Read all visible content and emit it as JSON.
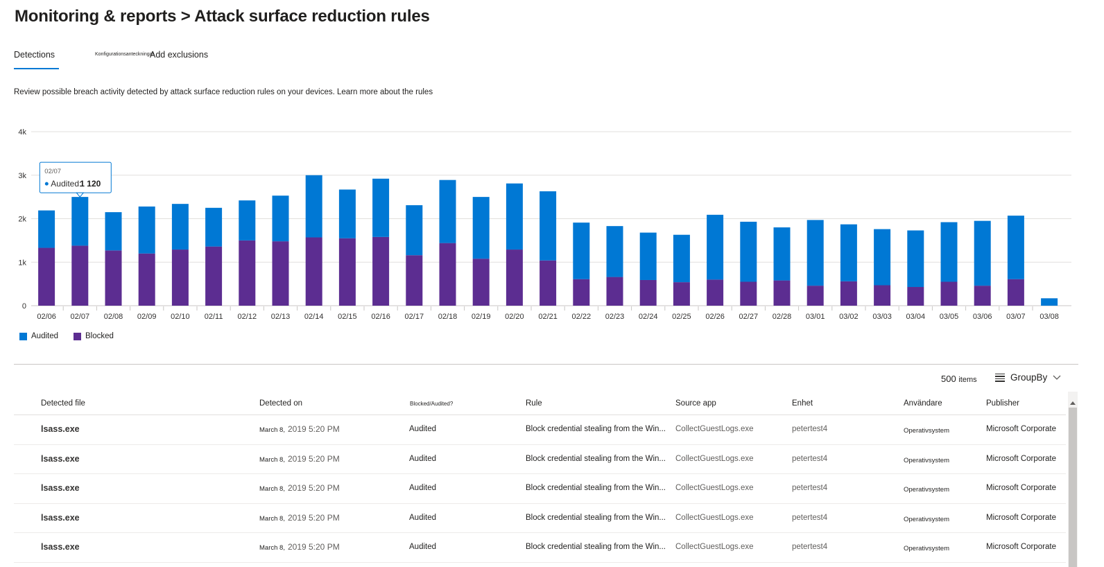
{
  "page": {
    "title": "Monitoring & reports > Attack surface reduction rules",
    "description": "Review possible breach activity detected by attack surface reduction rules on your devices. Learn more about the rules"
  },
  "tabs": [
    {
      "label": "Detections",
      "active": true
    },
    {
      "label": "Konfigurationsanteckningar",
      "active": false
    },
    {
      "label": "Add exclusions",
      "active": false
    }
  ],
  "colors": {
    "audited": "#0078d4",
    "blocked": "#5c2d91",
    "accent": "#0078d4"
  },
  "chart_data": {
    "type": "bar",
    "stacked": true,
    "categories": [
      "02/06",
      "02/07",
      "02/08",
      "02/09",
      "02/10",
      "02/11",
      "02/12",
      "02/13",
      "02/14",
      "02/15",
      "02/16",
      "02/17",
      "02/18",
      "02/19",
      "02/20",
      "02/21",
      "02/22",
      "02/23",
      "02/24",
      "02/25",
      "02/26",
      "02/27",
      "02/28",
      "03/01",
      "03/02",
      "03/03",
      "03/04",
      "03/05",
      "03/06",
      "03/07",
      "03/08"
    ],
    "series": [
      {
        "name": "Blocked",
        "color": "#5c2d91",
        "values": [
          1330,
          1380,
          1270,
          1200,
          1290,
          1360,
          1500,
          1480,
          1570,
          1550,
          1580,
          1160,
          1440,
          1080,
          1290,
          1040,
          610,
          660,
          590,
          540,
          600,
          550,
          580,
          460,
          560,
          470,
          430,
          550,
          460,
          610,
          0
        ]
      },
      {
        "name": "Audited",
        "color": "#0078d4",
        "values": [
          860,
          1120,
          880,
          1080,
          1050,
          890,
          920,
          1050,
          1430,
          1120,
          1340,
          1150,
          1450,
          1420,
          1520,
          1590,
          1300,
          1170,
          1090,
          1090,
          1490,
          1380,
          1220,
          1510,
          1310,
          1290,
          1300,
          1370,
          1490,
          1460,
          170
        ]
      }
    ],
    "y_ticks": [
      "0",
      "1k",
      "2k",
      "3k",
      "4k"
    ],
    "ylim": [
      0,
      4000
    ],
    "grid": true,
    "legend_position": "bottom-left",
    "tooltip": {
      "category": "02/07",
      "series": "Audited",
      "label": "Audited:",
      "value": "1 120"
    }
  },
  "legend": [
    {
      "label": "Audited",
      "color": "#0078d4"
    },
    {
      "label": "Blocked",
      "color": "#5c2d91"
    }
  ],
  "toolbar": {
    "count": "500",
    "items_word": "items",
    "groupby_label": "GroupBy"
  },
  "table": {
    "columns": [
      "Detected file",
      "Detected on",
      "Blocked/Audited?",
      "Rule",
      "Source app",
      "Enhet",
      "Användare",
      "Publisher"
    ],
    "rows": [
      {
        "file": "lsass.exe",
        "date_part": "March 8,",
        "time_part": "2019 5:20 PM",
        "status": "Audited",
        "rule": "Block credential stealing from the Win...",
        "source": "CollectGuestLogs.exe",
        "device": "petertest4",
        "user": "Operativsystem",
        "publisher": "Microsoft Corporate"
      },
      {
        "file": "lsass.exe",
        "date_part": "March 8,",
        "time_part": "2019 5:20 PM",
        "status": "Audited",
        "rule": "Block credential stealing from the Win...",
        "source": "CollectGuestLogs.exe",
        "device": "petertest4",
        "user": "Operativsystem",
        "publisher": "Microsoft Corporate"
      },
      {
        "file": "lsass.exe",
        "date_part": "March 8,",
        "time_part": "2019 5:20 PM",
        "status": "Audited",
        "rule": "Block credential stealing from the Win...",
        "source": "CollectGuestLogs.exe",
        "device": "petertest4",
        "user": "Operativsystem",
        "publisher": "Microsoft Corporate"
      },
      {
        "file": "lsass.exe",
        "date_part": "March 8,",
        "time_part": "2019 5:20 PM",
        "status": "Audited",
        "rule": "Block credential stealing from the Win...",
        "source": "CollectGuestLogs.exe",
        "device": "petertest4",
        "user": "Operativsystem",
        "publisher": "Microsoft Corporate"
      },
      {
        "file": "lsass.exe",
        "date_part": "March 8,",
        "time_part": "2019 5:20 PM",
        "status": "Audited",
        "rule": "Block credential stealing from the Win...",
        "source": "CollectGuestLogs.exe",
        "device": "petertest4",
        "user": "Operativsystem",
        "publisher": "Microsoft Corporate"
      }
    ]
  }
}
